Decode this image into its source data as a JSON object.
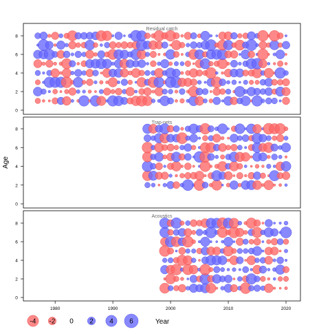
{
  "chart_data": {
    "type": "scatter",
    "subtype": "bubble residual plot (3 stacked panels sharing the Year axis)",
    "ylabel": "Age",
    "xlabel": "Year",
    "xlim": [
      1974.5,
      2022.5
    ],
    "x_ticks": [
      1980,
      1990,
      2000,
      2010,
      2020
    ],
    "ylim": [
      -0.5,
      8.9
    ],
    "y_ticks": [
      0,
      2,
      4,
      6,
      8
    ],
    "ages": [
      0,
      1,
      2,
      3,
      4,
      5,
      6,
      7,
      8
    ],
    "colors": {
      "negative": "#ff6666",
      "positive": "#6666ff",
      "edge_negative": "#e04545",
      "edge_positive": "#4545e0"
    },
    "grid": false,
    "panels": [
      {
        "name": "Residual catch",
        "year_start": 1977,
        "year_end": 2020,
        "ages": [
          1,
          2,
          3,
          4,
          5,
          6,
          7,
          8
        ]
      },
      {
        "name": "Trap-nets",
        "year_start": 1996,
        "year_end": 2020,
        "ages": [
          2,
          3,
          4,
          5,
          6,
          7,
          8
        ]
      },
      {
        "name": "Acoustics",
        "year_start": 1999,
        "year_end": 2020,
        "ages": [
          1,
          2,
          3,
          4,
          5,
          6,
          7,
          8
        ]
      }
    ],
    "legend": {
      "position": "bottom-left",
      "title": "Year",
      "items": [
        {
          "value": -4,
          "label": "-4"
        },
        {
          "value": -2,
          "label": "-2"
        },
        {
          "value": 0,
          "label": "0"
        },
        {
          "value": 2,
          "label": "2"
        },
        {
          "value": 4,
          "label": "4"
        },
        {
          "value": 6,
          "label": "6"
        }
      ]
    }
  }
}
